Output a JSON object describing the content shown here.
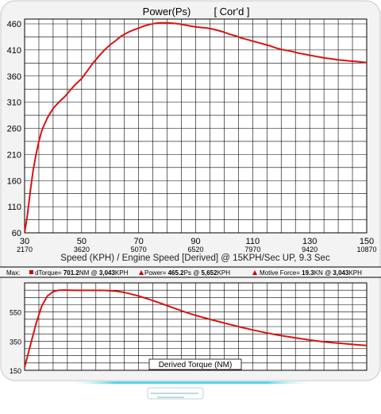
{
  "chart_data": [
    {
      "type": "line",
      "title": "Power(Ps)",
      "subtitle": "[ Cor'd ]",
      "xlabel": "Speed (KPH) / Engine Speed [Derived] @ 15KPH/Sec UP, 9.3 Sec",
      "xticks": [
        "30",
        "50",
        "70",
        "90",
        "110",
        "130",
        "150"
      ],
      "xticks_secondary": [
        "2170",
        "3620",
        "5070",
        "6520",
        "7970",
        "9420",
        "10870"
      ],
      "yticks": [
        "460",
        "410",
        "360",
        "310",
        "260",
        "210",
        "160",
        "110",
        "60"
      ],
      "xlim": [
        30,
        150
      ],
      "ylim": [
        60,
        470
      ],
      "grid": true,
      "series": [
        {
          "color": "#dd1111",
          "x": [
            30,
            31,
            32,
            33,
            34,
            35,
            36,
            37,
            38,
            40,
            42,
            44,
            46,
            48,
            50,
            52,
            54,
            56,
            58,
            60,
            62,
            64,
            66,
            68,
            70,
            72,
            74,
            76,
            78,
            80,
            82,
            84,
            86,
            88,
            90,
            92,
            94,
            96,
            98,
            100,
            102,
            104,
            106,
            108,
            110,
            112,
            114,
            116,
            118,
            120,
            122,
            124,
            126,
            128,
            130,
            132,
            134,
            136,
            138,
            140,
            142,
            144,
            146,
            148,
            150
          ],
          "y": [
            60,
            95,
            140,
            180,
            210,
            235,
            255,
            268,
            280,
            298,
            310,
            320,
            333,
            345,
            355,
            370,
            385,
            398,
            410,
            420,
            428,
            437,
            443,
            448,
            452,
            456,
            459,
            461,
            462,
            462,
            461,
            460,
            458,
            456,
            454,
            453,
            452,
            450,
            447,
            444,
            440,
            437,
            433,
            430,
            427,
            424,
            421,
            418,
            414,
            411,
            409,
            407,
            404,
            402,
            400,
            398,
            396,
            394,
            393,
            391,
            390,
            389,
            388,
            387,
            386
          ]
        }
      ]
    },
    {
      "type": "line",
      "title": "Derived Torque (NM)",
      "yticks": [
        "550",
        "350",
        "150"
      ],
      "xlim": [
        30,
        150
      ],
      "ylim": [
        150,
        750
      ],
      "grid": true,
      "series": [
        {
          "color": "#dd1111",
          "x": [
            30,
            32,
            34,
            36,
            38,
            40,
            42,
            44,
            46,
            48,
            50,
            52,
            54,
            56,
            58,
            60,
            62,
            64,
            66,
            68,
            70,
            74,
            78,
            82,
            86,
            90,
            94,
            98,
            102,
            106,
            110,
            114,
            118,
            122,
            126,
            130,
            134,
            138,
            142,
            146,
            150
          ],
          "y": [
            170,
            320,
            470,
            590,
            660,
            690,
            700,
            701,
            700,
            699,
            699,
            699,
            699,
            699,
            698,
            696,
            693,
            688,
            680,
            670,
            660,
            635,
            608,
            580,
            552,
            527,
            505,
            485,
            465,
            445,
            427,
            410,
            395,
            382,
            370,
            358,
            348,
            340,
            333,
            326,
            320
          ]
        }
      ]
    }
  ],
  "maxbar": {
    "label": "Max:",
    "items": [
      {
        "name": "dTorque",
        "value": "701.2",
        "unit": "NM",
        "at": "3,043",
        "at_unit": "KPH"
      },
      {
        "name": "Power",
        "value": "465.2",
        "unit": "Ps",
        "at": "5,652",
        "at_unit": "KPH"
      },
      {
        "name": "Motive Force",
        "value": "19.3",
        "unit": "KN",
        "at": "3,043",
        "at_unit": "KPH"
      }
    ]
  }
}
